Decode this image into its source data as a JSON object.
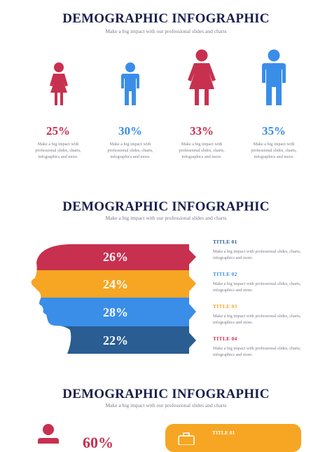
{
  "colors": {
    "title": "#1b1f4b",
    "red": "#c8304f",
    "blue": "#3a8ee8",
    "orange": "#f6a623",
    "darkblue": "#2a5d92"
  },
  "section1": {
    "title": "DEMOGRAPHIC INFOGRAPHIC",
    "subtitle": "Make a big impact with our professional slides and charts",
    "figures": [
      {
        "icon": "female-figure-icon",
        "percent": "25%",
        "desc": [
          "Make a big impact with",
          "professional slides, charts,",
          "infographics and more."
        ]
      },
      {
        "icon": "male-figure-icon",
        "percent": "30%",
        "desc": [
          "Make a big impact with",
          "professional slides, charts,",
          "infographics and more."
        ]
      },
      {
        "icon": "female-figure-icon",
        "percent": "33%",
        "desc": [
          "Make a big impact with",
          "professional slides, charts,",
          "infographics and more."
        ]
      },
      {
        "icon": "male-figure-icon",
        "percent": "35%",
        "desc": [
          "Make a big impact with",
          "professional slides, charts,",
          "infographics and more."
        ]
      }
    ]
  },
  "section2": {
    "title": "DEMOGRAPHIC INFOGRAPHIC",
    "subtitle": "Make a big impact with our professional slides and charts",
    "bands": [
      "26%",
      "24%",
      "28%",
      "22%"
    ],
    "items": [
      {
        "title": "TITLE 01",
        "desc": [
          "Make a big impact with professional slides, charts,",
          "infographics and more."
        ]
      },
      {
        "title": "TITLE 02",
        "desc": [
          "Make a big impact with professional slides, charts,",
          "infographics and more."
        ]
      },
      {
        "title": "TITLE 03",
        "desc": [
          "Make a big impact with professional slides, charts,",
          "infographics and more."
        ]
      },
      {
        "title": "TITLE 04",
        "desc": [
          "Make a big impact with professional slides, charts,",
          "infographics and more."
        ]
      }
    ]
  },
  "section3": {
    "title": "DEMOGRAPHIC INFOGRAPHIC",
    "subtitle": "Make a big impact with our professional slides and charts",
    "percent": "60%",
    "card_title": "TITLE 01"
  }
}
